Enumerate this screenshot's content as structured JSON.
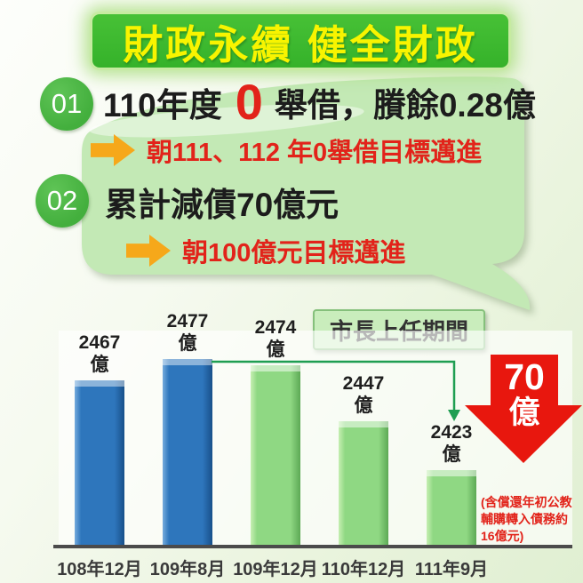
{
  "title": "財政永續 健全財政",
  "points": [
    {
      "number": "01",
      "prefix": "110年度",
      "highlight": "0",
      "suffix": "舉借，賸餘0.28億",
      "goal": "朝111、112 年0舉借目標邁進"
    },
    {
      "number": "02",
      "text": "累計減債70億元",
      "goal": "朝100億元目標邁進"
    }
  ],
  "callout": {
    "label": "市長上任期間"
  },
  "drop_badge": {
    "value": "70",
    "unit": "億"
  },
  "footnote": "(含償還年初公教輔購轉入債務約16億元)",
  "colors": {
    "banner_green": "#3eb92f",
    "title_yellow": "#f8f400",
    "bubble_green": "#c3e9b5",
    "circle_green": "#4cb748",
    "arrow_orange": "#f6a81a",
    "accent_red": "#e2231a",
    "bar_blue": "#2e76bc",
    "bar_green": "#8fd883",
    "connector_green": "#1f9e52"
  },
  "chart_data": {
    "type": "bar",
    "categories": [
      "108年12月",
      "109年8月",
      "109年12月",
      "110年12月",
      "111年9月"
    ],
    "values": [
      2467,
      2477,
      2474,
      2447,
      2423
    ],
    "unit": "億",
    "bar_styles": [
      "blue",
      "blue",
      "green",
      "green",
      "green"
    ],
    "ylim": [
      2386,
      2491
    ],
    "grid": false,
    "legend": "none",
    "title": "",
    "xlabel": "",
    "ylabel": "",
    "annotations": {
      "callout": "市長上任期間",
      "drop": "70億",
      "footnote": "(含償還年初公教輔購轉入債務約16億元)"
    }
  }
}
